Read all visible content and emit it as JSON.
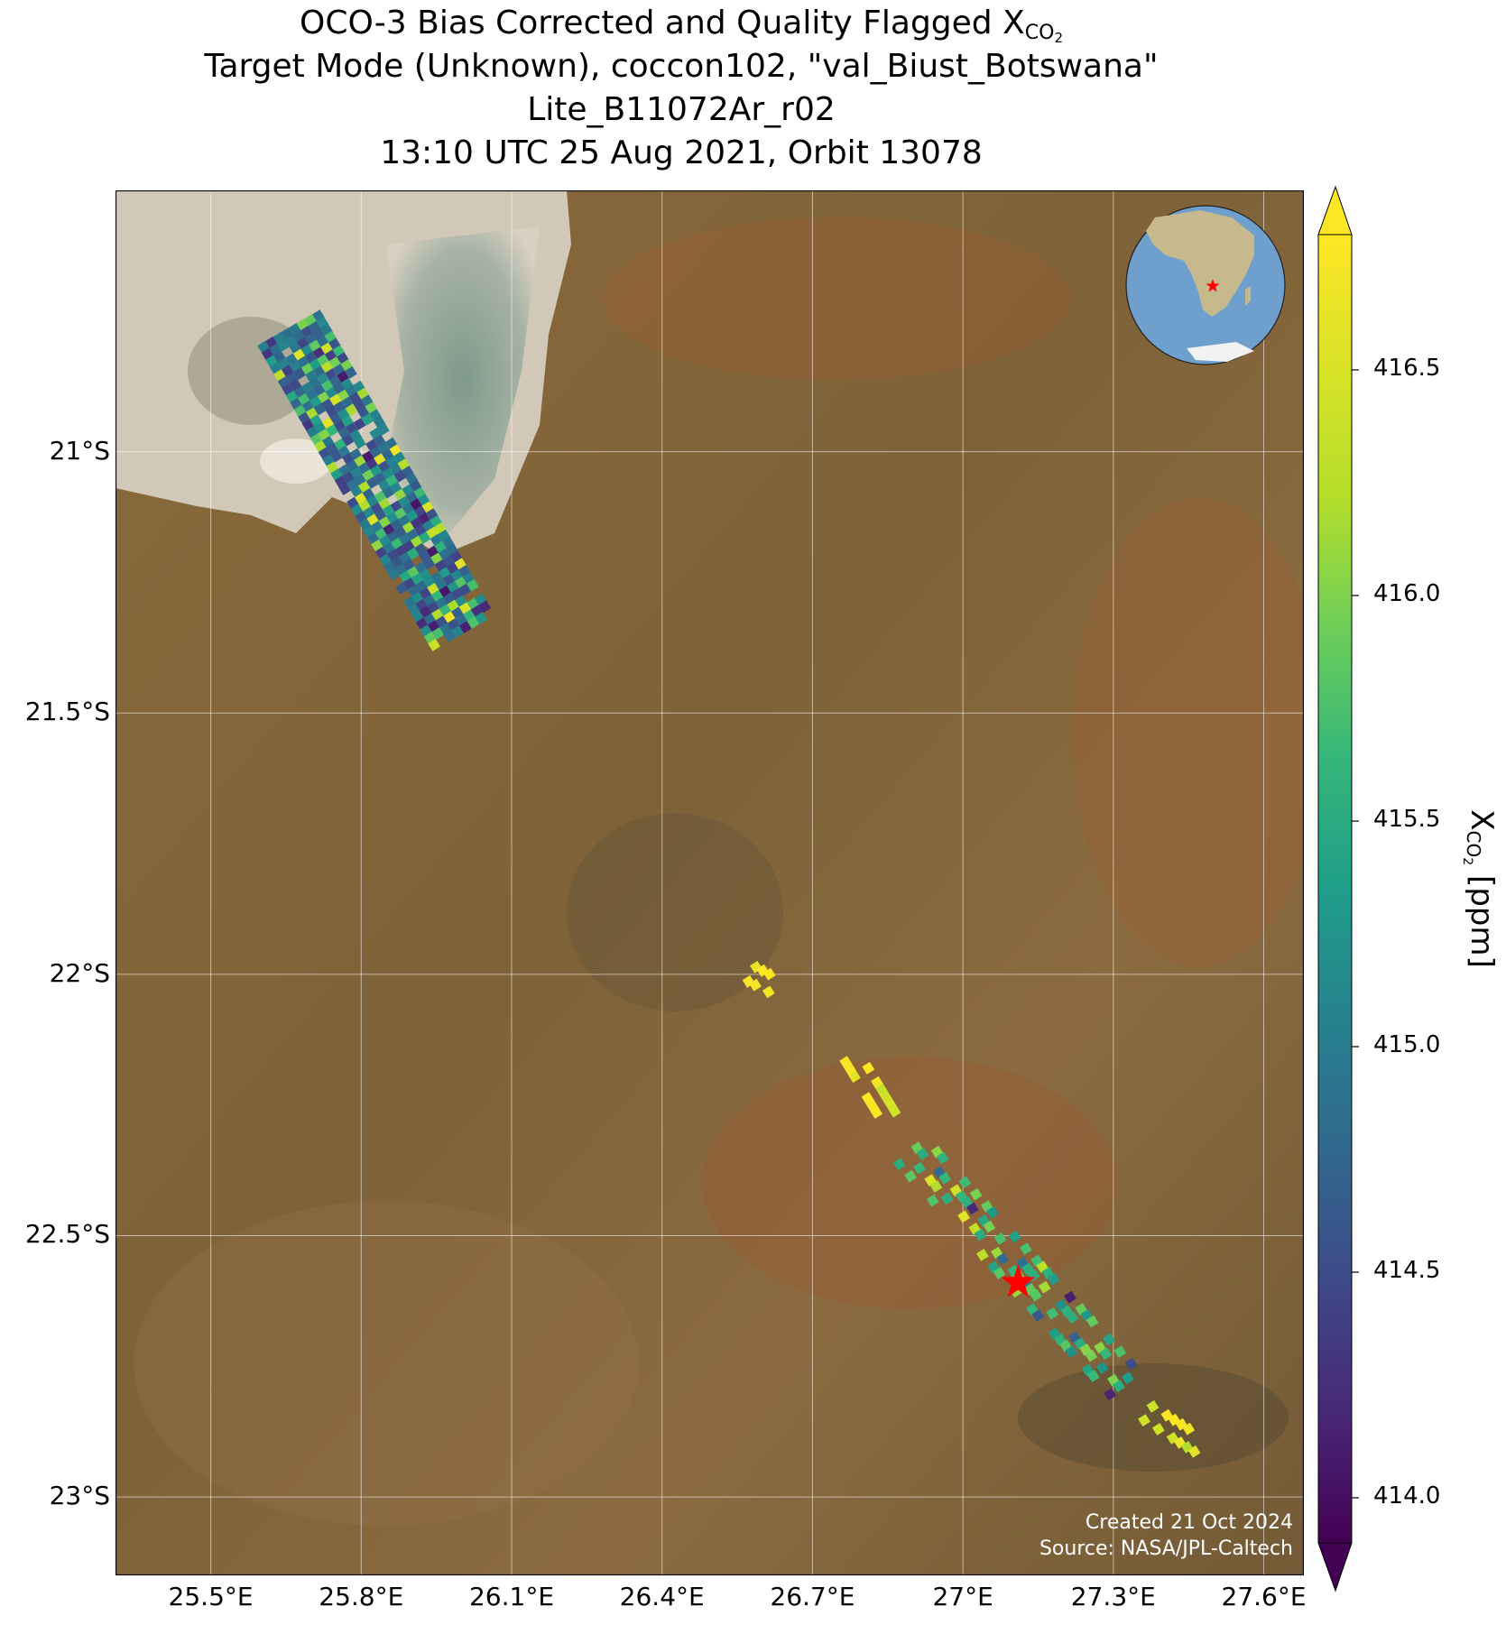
{
  "title": {
    "line1_prefix": "OCO-3 Bias Corrected and Quality Flagged X",
    "line1_sub": "CO",
    "line1_sub2": "2",
    "line2": "Target Mode (Unknown), coccon102, \"val_Biust_Botswana\"",
    "line3": "Lite_B11072Ar_r02",
    "line4": "13:10 UTC 25 Aug 2021, Orbit 13078"
  },
  "map": {
    "lon_range": [
      25.31,
      27.68
    ],
    "lat_range": [
      -20.5,
      -23.15
    ],
    "lon_ticks": [
      "25.5°E",
      "25.8°E",
      "26.1°E",
      "26.4°E",
      "26.7°E",
      "27°E",
      "27.3°E",
      "27.6°E"
    ],
    "lon_tick_values": [
      25.5,
      25.8,
      26.1,
      26.4,
      26.7,
      27.0,
      27.3,
      27.6
    ],
    "lat_ticks": [
      "21°S",
      "21.5°S",
      "22°S",
      "22.5°S",
      "23°S"
    ],
    "lat_tick_values": [
      -21.0,
      -21.5,
      -22.0,
      -22.5,
      -23.0
    ],
    "site_marker": {
      "lon": 27.11,
      "lat": -22.59,
      "color": "#ff0000"
    },
    "basemap_colors": {
      "land": "#8a6a3c",
      "salt_pan": "#d8d0c2",
      "lake": "#8fa89a"
    },
    "credit_line1": "Created 21 Oct 2024",
    "credit_line2": "Source: NASA/JPL-Caltech"
  },
  "inset_globe": {
    "ocean_color": "#6f9fcc",
    "land_color": "#c7b98e",
    "marker_color": "#ff0000"
  },
  "colorbar": {
    "label_prefix": "X",
    "label_sub": "CO",
    "label_sub2": "2",
    "label_suffix": " [ppm]",
    "vmin": 413.9,
    "vmax": 416.8,
    "ticks": [
      "414.0",
      "414.5",
      "415.0",
      "415.5",
      "416.0",
      "416.5"
    ],
    "tick_values": [
      414.0,
      414.5,
      415.0,
      415.5,
      416.0,
      416.5
    ],
    "colormap": "viridis",
    "extend": "both"
  },
  "chart_data": {
    "type": "heatmap",
    "variable": "XCO2 [ppm]",
    "clusters": [
      {
        "lon_start": 25.66,
        "lat_start": -20.77,
        "lon_end": 26.0,
        "lat_end": -21.34,
        "value_range": [
          414.0,
          416.8
        ],
        "mean": 414.8
      },
      {
        "lon_start": 26.58,
        "lat_start": -22.0,
        "lon_end": 26.62,
        "lat_end": -22.02,
        "value_range": [
          416.7,
          416.8
        ],
        "mean": 416.75
      },
      {
        "lon_start": 26.78,
        "lat_start": -22.16,
        "lon_end": 26.85,
        "lat_end": -22.27,
        "value_range": [
          416.7,
          416.8
        ],
        "mean": 416.75
      },
      {
        "lon_start": 26.9,
        "lat_start": -22.34,
        "lon_end": 27.32,
        "lat_end": -22.78,
        "value_range": [
          414.0,
          416.8
        ],
        "mean": 415.6
      },
      {
        "lon_start": 27.37,
        "lat_start": -22.84,
        "lon_end": 27.47,
        "lat_end": -22.9,
        "value_range": [
          416.2,
          416.8
        ],
        "mean": 416.7
      }
    ]
  }
}
